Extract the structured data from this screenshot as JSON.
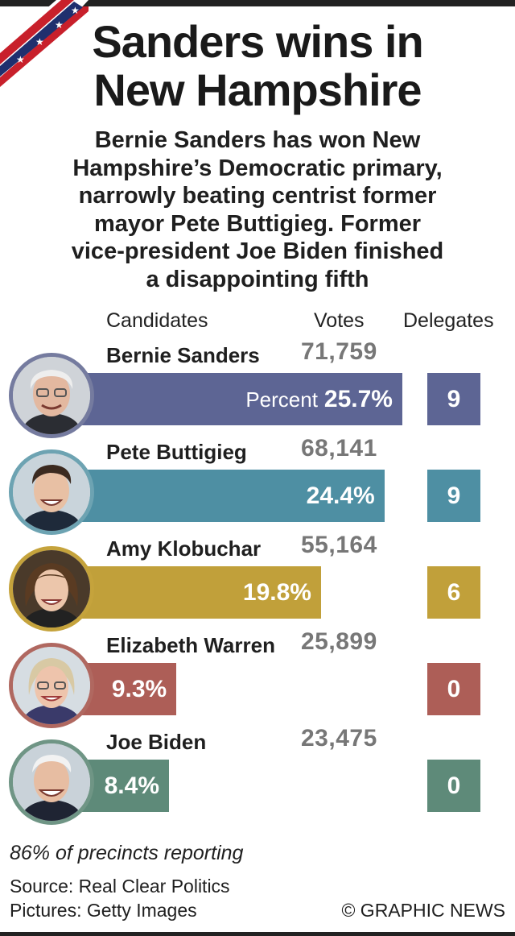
{
  "header": {
    "title_line1": "Sanders wins in",
    "title_line2": "New Hampshire",
    "subtitle_lines": [
      "Bernie Sanders has won New",
      "Hampshire’s Democratic primary,",
      "narrowly beating centrist former",
      "mayor Pete Buttigieg. Former",
      "vice-president Joe Biden finished",
      "a disappointing fifth"
    ]
  },
  "columns": {
    "candidates": "Candidates",
    "votes": "Votes",
    "delegates": "Delegates"
  },
  "percent_word": "Percent",
  "chart_data": {
    "type": "bar",
    "orientation": "horizontal",
    "title": "Sanders wins in New Hampshire",
    "categories": [
      "Bernie Sanders",
      "Pete Buttigieg",
      "Amy Klobuchar",
      "Elizabeth Warren",
      "Joe Biden"
    ],
    "series": [
      {
        "name": "Percent",
        "values": [
          25.7,
          24.4,
          19.8,
          9.3,
          8.4
        ]
      },
      {
        "name": "Votes",
        "values": [
          71759,
          68141,
          55164,
          25899,
          23475
        ]
      },
      {
        "name": "Delegates",
        "values": [
          9,
          9,
          6,
          0,
          0
        ]
      }
    ],
    "value_labels": [
      "25.7%",
      "24.4%",
      "19.8%",
      "9.3%",
      "8.4%"
    ],
    "vote_labels": [
      "71,759",
      "68,141",
      "55,164",
      "25,899",
      "23,475"
    ],
    "delegate_labels": [
      "9",
      "9",
      "6",
      "0",
      "0"
    ],
    "colors": [
      "#5d6594",
      "#4e8fa3",
      "#c1a03a",
      "#ad5e57",
      "#5e8a79"
    ],
    "xlim": [
      0,
      25.7
    ]
  },
  "footer": {
    "precincts": "86% of precincts reporting",
    "source": "Source: Real Clear Politics",
    "pictures": "Pictures: Getty Images",
    "credit": "© GRAPHIC NEWS"
  }
}
